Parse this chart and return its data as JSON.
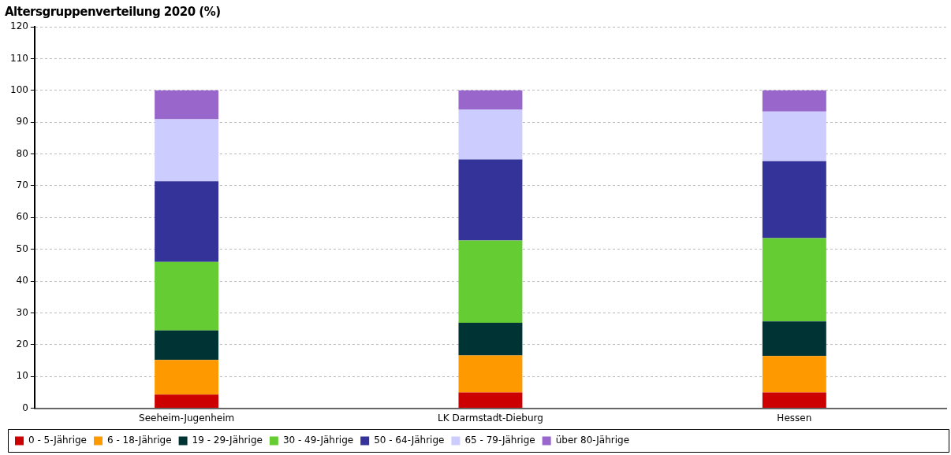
{
  "chart_data": {
    "type": "bar",
    "stacked": true,
    "title": "Altersgruppenverteilung 2020 (%)",
    "categories": [
      "Seeheim-Jugenheim",
      "LK Darmstadt-Dieburg",
      "Hessen"
    ],
    "series": [
      {
        "name": "0 - 5-Jährige",
        "color": "#cc0000",
        "values": [
          4.3,
          5.0,
          5.0
        ]
      },
      {
        "name": "6 - 18-Jährige",
        "color": "#ff9900",
        "values": [
          10.9,
          11.6,
          11.4
        ]
      },
      {
        "name": "19 - 29-Jährige",
        "color": "#003333",
        "values": [
          9.3,
          10.3,
          10.9
        ]
      },
      {
        "name": "30 - 49-Jährige",
        "color": "#66cc33",
        "values": [
          21.5,
          25.9,
          26.2
        ]
      },
      {
        "name": "50 - 64-Jährige",
        "color": "#333399",
        "values": [
          25.4,
          25.5,
          24.2
        ]
      },
      {
        "name": "65 - 79-Jährige",
        "color": "#ccccff",
        "values": [
          19.5,
          15.7,
          15.6
        ]
      },
      {
        "name": "über 80-Jährige",
        "color": "#9966cc",
        "values": [
          9.1,
          6.0,
          6.7
        ]
      }
    ],
    "ylim": [
      0,
      120
    ],
    "yticks": [
      0,
      10,
      20,
      30,
      40,
      50,
      60,
      70,
      80,
      90,
      100,
      110,
      120
    ],
    "grid": "y",
    "legend": "bottom"
  }
}
